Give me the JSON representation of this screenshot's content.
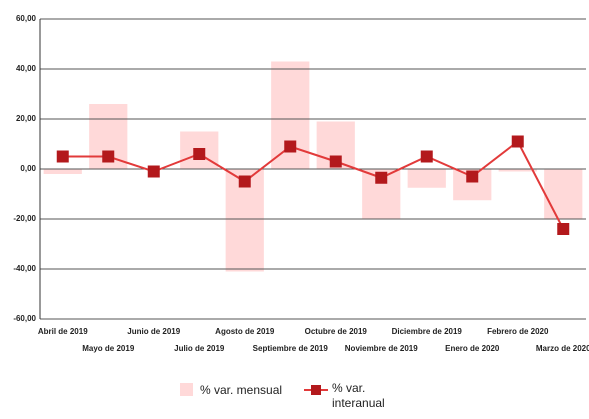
{
  "chart_data": {
    "type": "bar_line",
    "categories": [
      "Abril de 2019",
      "Mayo de 2019",
      "Junio de 2019",
      "Julio de 2019",
      "Agosto de 2019",
      "Septiembre de 2019",
      "Octubre de 2019",
      "Noviembre de 2019",
      "Diciembre de 2019",
      "Enero de 2020",
      "Febrero de 2020",
      "Marzo de 2020"
    ],
    "series": [
      {
        "name": "% var. mensual",
        "type": "bar",
        "color": "#ffd9d9",
        "values": [
          -2,
          26,
          0,
          15,
          -41,
          43,
          19,
          -20,
          -7.5,
          -12.5,
          -1,
          -20
        ]
      },
      {
        "name": "% var. interanual",
        "type": "line",
        "color": "#e23a3a",
        "marker_color": "#b3191c",
        "values": [
          5,
          5,
          -1,
          6,
          -5,
          9,
          3,
          -3.5,
          5,
          -3,
          11,
          -24
        ]
      }
    ],
    "ylim": [
      -60,
      60
    ],
    "yticks": [
      {
        "value": -60,
        "label": "-60,00"
      },
      {
        "value": -40,
        "label": "-40,00"
      },
      {
        "value": -20,
        "label": "-20,00"
      },
      {
        "value": 0,
        "label": "0,00"
      },
      {
        "value": 20,
        "label": "20,00"
      },
      {
        "value": 40,
        "label": "40,00"
      },
      {
        "value": 60,
        "label": "60,00"
      }
    ],
    "grid": true,
    "legend": "bottom"
  }
}
